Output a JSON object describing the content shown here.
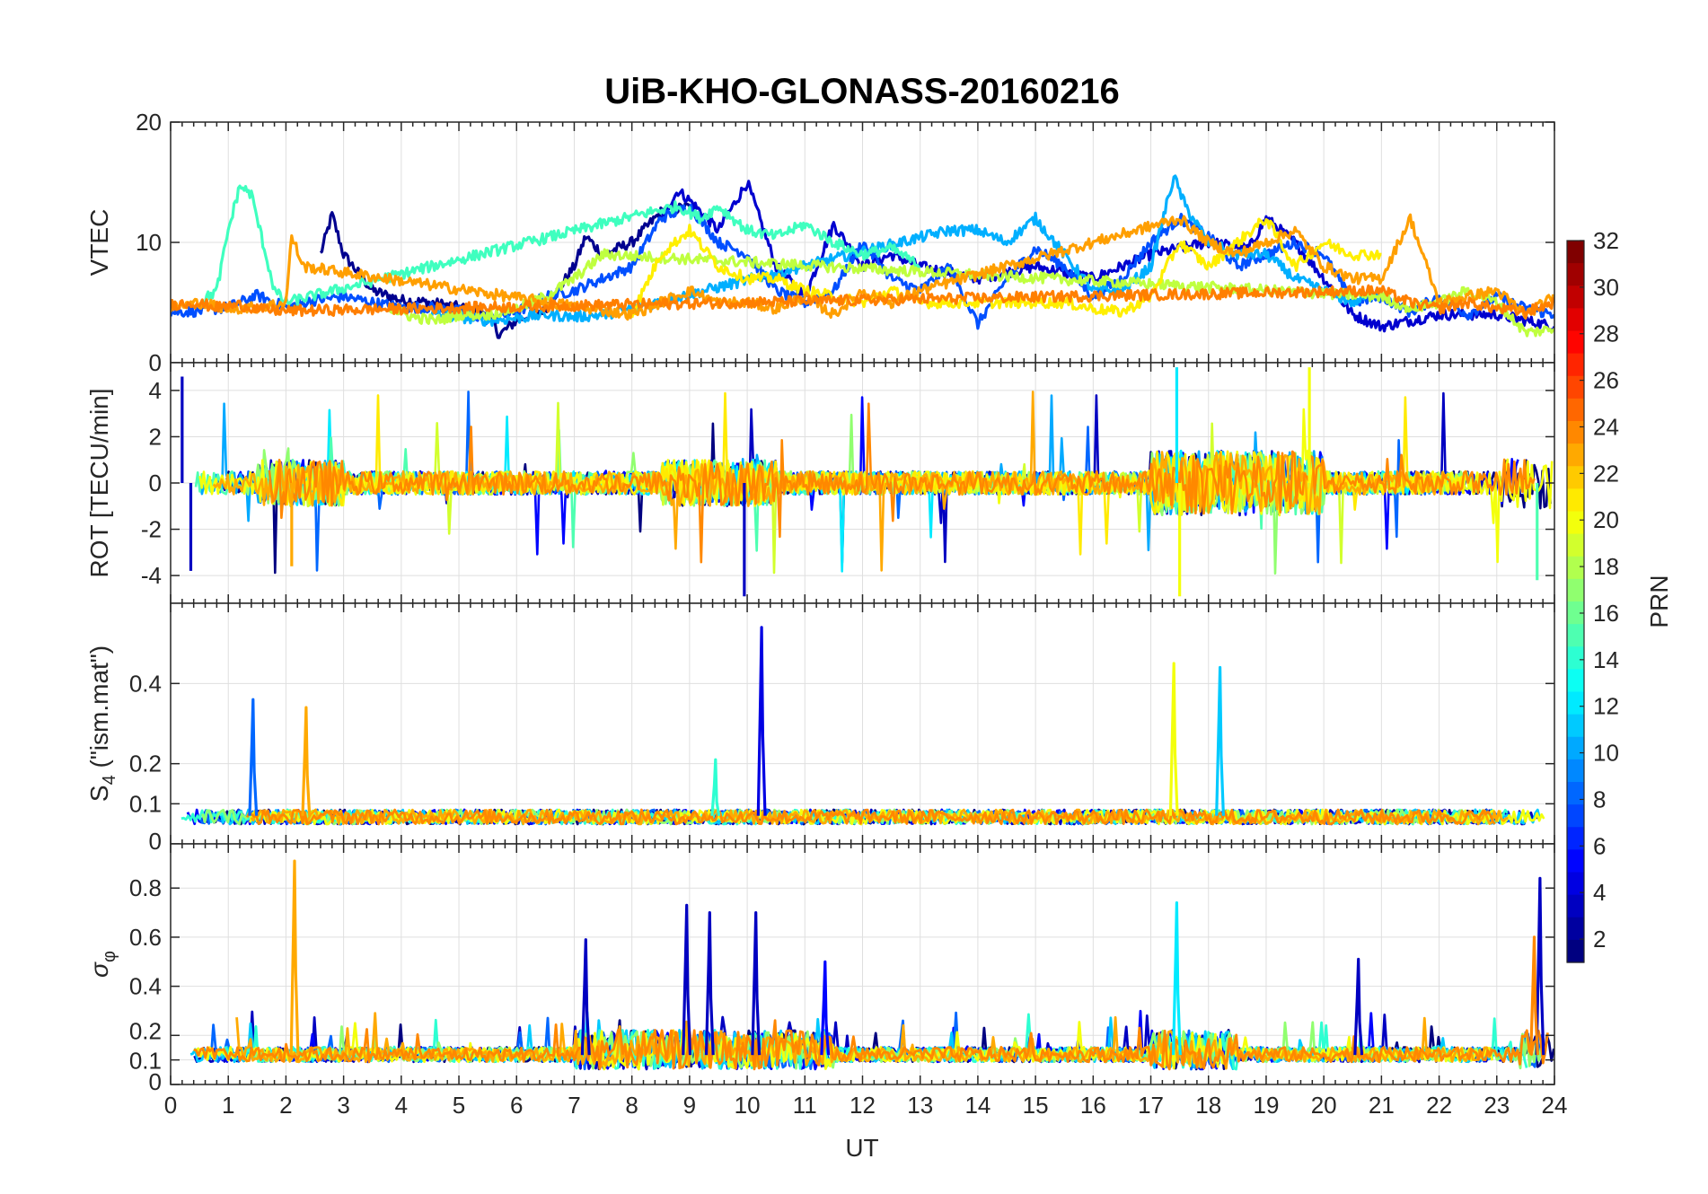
{
  "title": "UiB-KHO-GLONASS-20160216",
  "xlabel": "UT",
  "x_ticks": [
    "0",
    "1",
    "2",
    "3",
    "4",
    "5",
    "6",
    "7",
    "8",
    "9",
    "10",
    "11",
    "12",
    "13",
    "14",
    "15",
    "16",
    "17",
    "18",
    "19",
    "20",
    "21",
    "22",
    "23",
    "24"
  ],
  "colorbar": {
    "label": "PRN",
    "tick_labels": [
      "2",
      "4",
      "6",
      "8",
      "10",
      "12",
      "14",
      "16",
      "18",
      "20",
      "22",
      "24",
      "26",
      "28",
      "30",
      "32"
    ],
    "range": [
      1,
      32
    ],
    "colormap": "jet"
  },
  "chart_data": [
    {
      "type": "line",
      "panel": "vtec",
      "ylabel": "VTEC",
      "y_ticks": [
        "0",
        "10",
        "20"
      ],
      "xlim": [
        0,
        24
      ],
      "ylim": [
        0,
        20
      ],
      "grid": true,
      "series": [
        {
          "prn": 1,
          "color": "#00008f",
          "x": [
            2.6,
            2.8,
            3.0,
            3.5,
            4.0,
            4.5,
            5.0,
            5.5,
            5.7,
            6.0,
            6.5,
            7.0,
            7.2,
            7.5,
            8.0,
            8.5,
            9.0
          ],
          "y": [
            9,
            12.3,
            9,
            6,
            5.2,
            5,
            4.6,
            4.2,
            2.3,
            3.5,
            4.5,
            8,
            10.5,
            9,
            10,
            12.5,
            13
          ]
        },
        {
          "prn": 3,
          "color": "#0000cf",
          "x": [
            8.5,
            8.8,
            9.0,
            9.5,
            10.0,
            10.5,
            11.0,
            11.5,
            12.0,
            12.5,
            13.0,
            14.0,
            15.0,
            16.0,
            17.0,
            18.0,
            18.7,
            19.0,
            19.5,
            20.0,
            20.5,
            21.0,
            21.5,
            22.0,
            23.0,
            24.0
          ],
          "y": [
            12,
            14.3,
            13.5,
            11,
            15,
            8,
            5.5,
            11.5,
            8,
            9,
            8,
            7,
            8,
            7,
            9,
            10,
            9.5,
            12,
            10,
            7,
            4,
            3,
            3.5,
            4,
            4,
            3
          ]
        },
        {
          "prn": 6,
          "color": "#004fff",
          "x": [
            0.0,
            0.5,
            1.0,
            1.5,
            2.0,
            2.5,
            3.0,
            3.5,
            4.0,
            4.5,
            5.0,
            5.5,
            6.0,
            6.5,
            7.0,
            7.5,
            8.0,
            8.5,
            9.0,
            9.5,
            10.0,
            10.5,
            11.0,
            11.5,
            12.0,
            12.5,
            13.0,
            13.5,
            14.0,
            14.5,
            15.0,
            15.5,
            16.0,
            16.5,
            17.0,
            17.5,
            18.0,
            18.5,
            19.0,
            19.5,
            20.0,
            20.5,
            21.0,
            21.5,
            22.0,
            22.5,
            23.0,
            23.5,
            24.0
          ],
          "y": [
            4.2,
            4.3,
            4.6,
            5.6,
            4.6,
            5.2,
            5.5,
            5,
            4.6,
            4.6,
            4.3,
            3.6,
            4.2,
            5.5,
            6,
            7,
            8,
            12,
            13,
            10,
            9,
            6,
            5,
            6,
            10,
            7,
            6,
            8,
            3.2,
            7,
            9.5,
            8,
            5.5,
            7,
            10,
            12,
            10.5,
            8,
            9,
            10,
            9,
            5,
            5.5,
            4.2,
            5.5,
            4,
            5.5,
            4.5,
            4
          ]
        },
        {
          "prn": 10,
          "color": "#00afff",
          "x": [
            4.5,
            5.0,
            5.5,
            6.0,
            6.5,
            7.0,
            7.5,
            8.0,
            13.5,
            14.0,
            14.5,
            15.0,
            15.5,
            16.0,
            16.5,
            17.0,
            17.4,
            17.6,
            18.0,
            18.5,
            19.0,
            19.5,
            20.0,
            20.5,
            21.0
          ],
          "y": [
            4,
            3.8,
            3.5,
            3.7,
            4,
            3.8,
            4,
            4.5,
            11,
            11,
            10,
            12,
            9,
            6,
            6,
            8,
            15.5,
            13,
            10,
            9,
            9,
            7,
            6,
            5,
            6
          ]
        },
        {
          "prn": 14,
          "color": "#3fffbf",
          "x": [
            0.5,
            0.8,
            1.0,
            1.2,
            1.4,
            1.6,
            1.8,
            2.0,
            8.3,
            8.8,
            9.2,
            9.5,
            10.0,
            10.5,
            11.0,
            11.5,
            12.0,
            12.5,
            13.0
          ],
          "y": [
            5,
            6,
            11,
            14.7,
            14,
            10,
            6,
            5,
            12.5,
            13,
            12,
            13,
            11,
            10.5,
            11.5,
            10,
            9,
            9.5,
            8
          ]
        },
        {
          "prn": 18,
          "color": "#bfff3f",
          "x": [
            3.8,
            4.2,
            4.6,
            5.0,
            5.5,
            6.0,
            6.5,
            7.0,
            7.5,
            21.0,
            21.5,
            22.0,
            22.5,
            23.0,
            23.5,
            24.0
          ],
          "y": [
            4.5,
            3.8,
            3.5,
            4,
            4,
            4.5,
            5.5,
            7,
            9,
            5.5,
            4.5,
            5,
            6,
            5,
            2.5,
            2.8
          ]
        },
        {
          "prn": 20,
          "color": "#ffef00",
          "x": [
            8.0,
            8.5,
            9.0,
            9.5,
            10.0,
            10.5,
            11.0,
            11.5,
            12.0,
            12.5,
            13.0,
            15.5,
            16.0,
            16.5,
            17.0,
            17.5,
            18.0,
            18.5,
            19.0,
            19.5,
            20.0,
            20.5,
            21.0
          ],
          "y": [
            4,
            9,
            11,
            8,
            7,
            7,
            6,
            5.5,
            5,
            6,
            5,
            5,
            4.5,
            4.2,
            5.5,
            10,
            8,
            10,
            12,
            8,
            10,
            9,
            9
          ]
        },
        {
          "prn": 23,
          "color": "#ff9f00",
          "x": [
            0.0,
            0.5,
            1.0,
            1.5,
            2.0,
            2.1,
            2.3,
            8.0,
            8.5,
            9.0,
            9.5,
            10.0,
            10.5,
            11.0,
            11.5,
            12.0,
            12.5,
            13.0,
            17.5,
            18.0,
            18.5,
            19.0,
            19.5,
            20.0,
            20.5,
            21.0,
            21.5,
            22.0,
            22.5,
            23.0,
            23.5,
            24.0
          ],
          "y": [
            4.6,
            5,
            4.5,
            4.6,
            5,
            10.5,
            8,
            4,
            5,
            6,
            5,
            5,
            4.5,
            5.5,
            4,
            6,
            5,
            6,
            12,
            10,
            9,
            10,
            11,
            8,
            7,
            7,
            12,
            5,
            5.5,
            6,
            4,
            5.5
          ]
        },
        {
          "prn": 24,
          "color": "#ff7f00",
          "x": [
            0.0,
            0.4,
            0.8,
            1.2,
            1.6,
            2.0,
            21.0,
            21.5,
            22.0,
            22.5,
            23.0,
            23.5,
            24.0
          ],
          "y": [
            4.8,
            5.0,
            4.6,
            4.8,
            4.4,
            4.3,
            6,
            5,
            4.5,
            5,
            4.5,
            4.2,
            5
          ]
        }
      ]
    },
    {
      "type": "line",
      "panel": "rot",
      "ylabel": "ROT [TECU/min]",
      "y_ticks": [
        "-4",
        "-2",
        "0",
        "2",
        "4"
      ],
      "xlim": [
        0,
        24
      ],
      "ylim": [
        -5.2,
        5.2
      ],
      "grid": true,
      "note_values": [
        {
          "x": 0.2,
          "y": 4.6,
          "prn": 3
        },
        {
          "x": 0.35,
          "y": -3.8,
          "prn": 3
        },
        {
          "x": 2.1,
          "y": -3.6,
          "prn": 23
        },
        {
          "x": 9.95,
          "y": -4.9,
          "prn": 3
        },
        {
          "x": 17.45,
          "y": 5.0,
          "prn": 12
        },
        {
          "x": 17.5,
          "y": -4.9,
          "prn": 20
        },
        {
          "x": 19.75,
          "y": 5.0,
          "prn": 20
        },
        {
          "x": 23.7,
          "y": -4.2,
          "prn": 15
        }
      ]
    },
    {
      "type": "line",
      "panel": "s4",
      "ylabel": "S4 (\"ism.mat\")",
      "ylabel_main": "S",
      "ylabel_sub": "4",
      "ylabel_rest": " (\"ism.mat\")",
      "y_ticks": [
        "0",
        "0.1",
        "0.2",
        "0.4"
      ],
      "xlim": [
        0,
        24
      ],
      "ylim": [
        0,
        0.6
      ],
      "grid": true,
      "spikes": [
        {
          "x": 1.43,
          "y": 0.36,
          "prn": 8
        },
        {
          "x": 2.35,
          "y": 0.34,
          "prn": 23
        },
        {
          "x": 9.45,
          "y": 0.21,
          "prn": 14
        },
        {
          "x": 10.25,
          "y": 0.54,
          "prn": 4
        },
        {
          "x": 17.4,
          "y": 0.45,
          "prn": 20
        },
        {
          "x": 18.2,
          "y": 0.44,
          "prn": 11
        }
      ]
    },
    {
      "type": "line",
      "panel": "sigma_phi",
      "ylabel": "σφ",
      "ylabel_main": "σ",
      "ylabel_sub": "φ",
      "y_ticks": [
        "0",
        "0.1",
        "0.2",
        "0.4",
        "0.6",
        "0.8"
      ],
      "xlim": [
        0,
        24
      ],
      "ylim": [
        0,
        0.98
      ],
      "grid": true,
      "spikes": [
        {
          "x": 2.15,
          "y": 0.91,
          "prn": 23
        },
        {
          "x": 7.2,
          "y": 0.59,
          "prn": 3
        },
        {
          "x": 8.95,
          "y": 0.73,
          "prn": 3
        },
        {
          "x": 9.35,
          "y": 0.7,
          "prn": 3
        },
        {
          "x": 10.15,
          "y": 0.7,
          "prn": 3
        },
        {
          "x": 11.35,
          "y": 0.5,
          "prn": 5
        },
        {
          "x": 17.45,
          "y": 0.74,
          "prn": 12
        },
        {
          "x": 20.6,
          "y": 0.51,
          "prn": 3
        },
        {
          "x": 23.75,
          "y": 0.84,
          "prn": 3
        },
        {
          "x": 23.65,
          "y": 0.6,
          "prn": 24
        }
      ]
    }
  ]
}
